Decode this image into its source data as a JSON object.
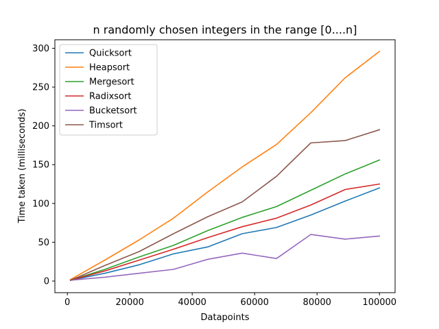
{
  "chart_data": {
    "type": "line",
    "title": "n randomly chosen integers in the range [0....n]",
    "xlabel": "Datapoints",
    "ylabel": "Time taken (milliseconds)",
    "xlim": [
      -4000,
      105000
    ],
    "ylim": [
      -15,
      311
    ],
    "xticks": [
      0,
      20000,
      40000,
      60000,
      80000,
      100000
    ],
    "yticks": [
      0,
      50,
      100,
      150,
      200,
      250,
      300
    ],
    "legend_position": "upper left",
    "grid": false,
    "x": [
      1000,
      12000,
      23000,
      34000,
      45000,
      56000,
      67000,
      78000,
      89000,
      100000
    ],
    "series": [
      {
        "name": "Quicksort",
        "color": "#1f77b4",
        "values": [
          1,
          10,
          21,
          35,
          44,
          61,
          69,
          85,
          103,
          120
        ]
      },
      {
        "name": "Heapsort",
        "color": "#ff7f0e",
        "values": [
          2,
          27,
          53,
          81,
          115,
          147,
          176,
          217,
          262,
          296
        ]
      },
      {
        "name": "Mergesort",
        "color": "#2ca02c",
        "values": [
          1,
          15,
          31,
          46,
          65,
          82,
          96,
          117,
          138,
          156
        ]
      },
      {
        "name": "Radixsort",
        "color": "#d62728",
        "values": [
          1,
          13,
          27,
          41,
          56,
          70,
          81,
          98,
          118,
          125
        ]
      },
      {
        "name": "Bucketsort",
        "color": "#9467bd",
        "values": [
          1,
          5,
          10,
          15,
          28,
          36,
          29,
          60,
          54,
          58
        ]
      },
      {
        "name": "Timsort",
        "color": "#8c564b",
        "values": [
          1,
          20,
          38,
          61,
          83,
          102,
          135,
          178,
          181,
          195
        ]
      }
    ]
  }
}
